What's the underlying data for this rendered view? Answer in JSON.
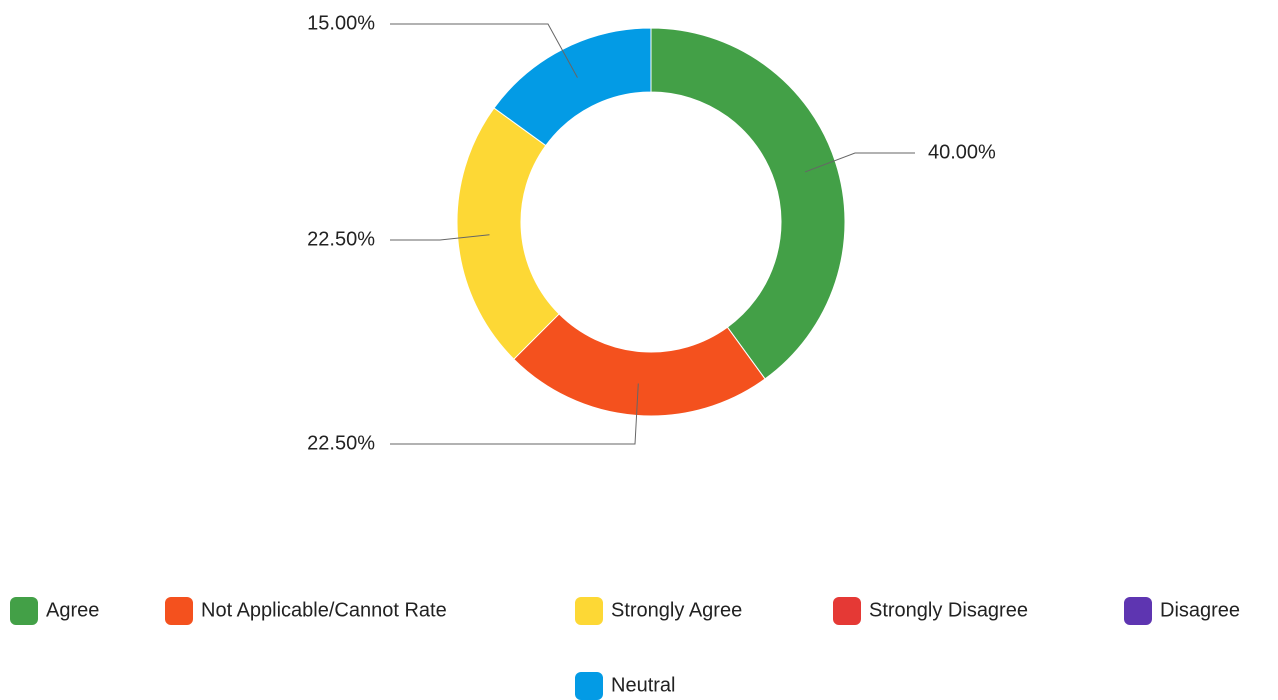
{
  "chart_data": {
    "type": "donut",
    "categories": [
      "Agree",
      "Not Applicable/Cannot Rate",
      "Strongly Agree",
      "Strongly Disagree",
      "Disagree",
      "Neutral"
    ],
    "values": [
      40,
      22.5,
      22.5,
      0,
      0,
      15
    ],
    "value_labels": [
      "40.00%",
      "22.50%",
      "22.50%",
      null,
      null,
      "15.00%"
    ],
    "colors": [
      "#43a047",
      "#f4511e",
      "#fdd835",
      "#e53935",
      "#5e35b1",
      "#039be5"
    ],
    "legend": "bottom"
  }
}
